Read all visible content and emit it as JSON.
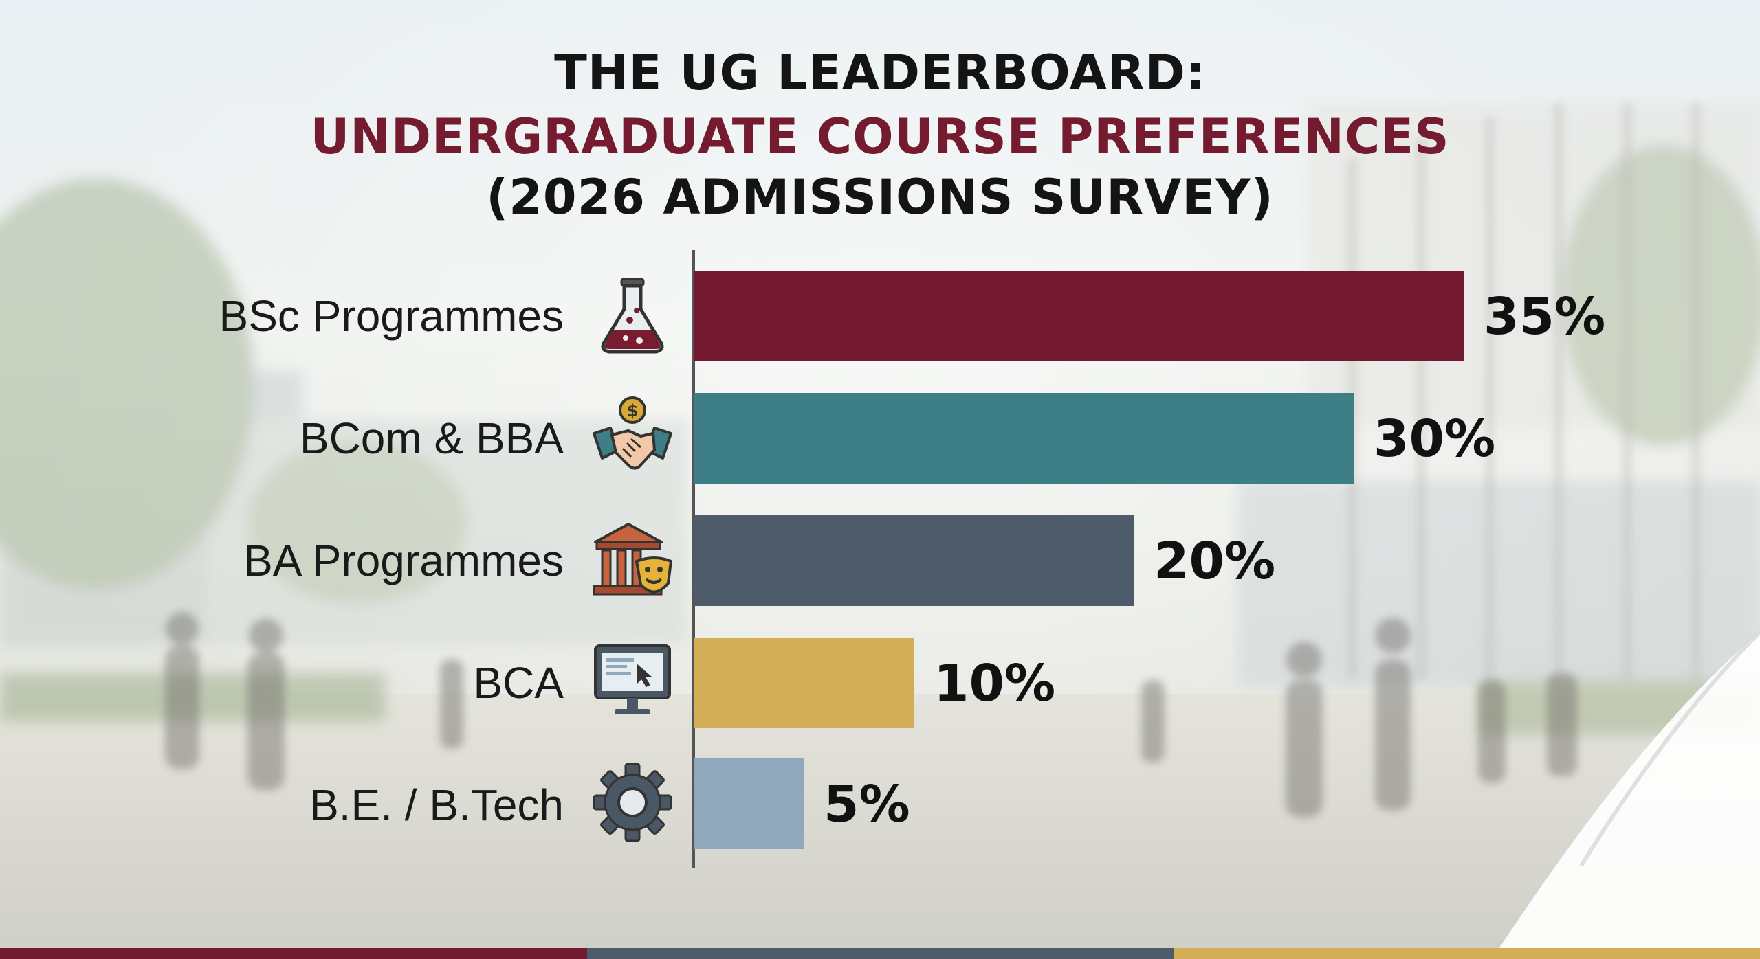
{
  "colors": {
    "title_dark": "#141414",
    "title_accent": "#741b30",
    "bsc": "#741a30",
    "bcom": "#3e7e87",
    "ba": "#4d5b6a",
    "bca": "#d3ad57",
    "btech": "#8fa8bc"
  },
  "chart_data": {
    "type": "bar",
    "orientation": "horizontal",
    "title": "THE UG LEADERBOARD:",
    "subtitle": "UNDERGRADUATE COURSE PREFERENCES",
    "subtitle2": "(2026 ADMISSIONS SURVEY)",
    "categories": [
      "BSc Programmes",
      "BCom & BBA",
      "BA Programmes",
      "BCA",
      "B.E. / B.Tech"
    ],
    "values": [
      35,
      30,
      20,
      10,
      5
    ],
    "value_labels": [
      "35%",
      "30%",
      "20%",
      "10%",
      "5%"
    ],
    "icons": [
      "flask-icon",
      "handshake-icon",
      "theatre-icon",
      "computer-icon",
      "gear-icon"
    ],
    "xlim": [
      0,
      35
    ],
    "xlabel": "",
    "ylabel": "",
    "grid": false,
    "legend": "none"
  }
}
